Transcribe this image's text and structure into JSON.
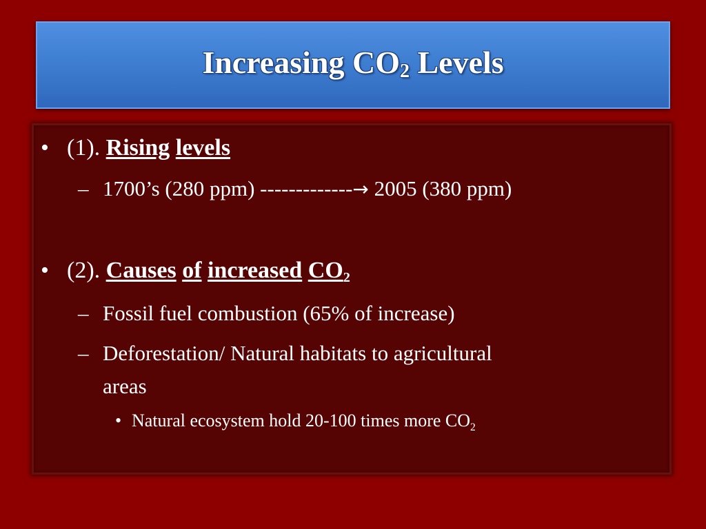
{
  "slide": {
    "title": {
      "text": "Increasing CO",
      "sub": "2",
      "rest": " Levels"
    },
    "items": [
      {
        "bullet": "•",
        "num": "(1). ",
        "words": [
          "Rising",
          "levels"
        ]
      },
      {
        "dash": "–",
        "left": "1700’s (280 ppm) -------------",
        "arrow": "→",
        "right": " 2005 (380 ppm)"
      },
      {
        "bullet": "•",
        "num": "(2). ",
        "words": [
          "Causes",
          "of",
          "increased",
          "CO"
        ],
        "sub": "2"
      },
      {
        "dash": "–",
        "text": "Fossil fuel combustion (65% of  increase)"
      },
      {
        "dash": "–",
        "text": "Deforestation/ Natural habitats to agricultural",
        "text2": "areas"
      },
      {
        "bullet": "•",
        "text": "Natural ecosystem hold 20-100 times more CO",
        "sub": "2"
      }
    ]
  }
}
